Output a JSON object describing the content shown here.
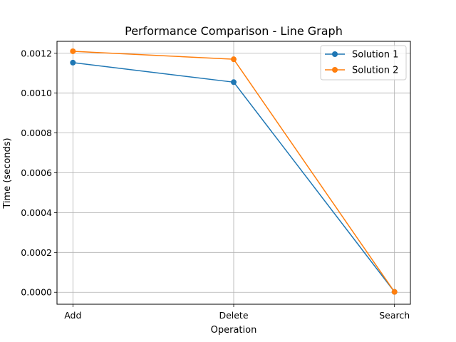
{
  "chart_data": {
    "type": "line",
    "title": "Performance Comparison - Line Graph",
    "xlabel": "Operation",
    "ylabel": "Time (seconds)",
    "categories": [
      "Add",
      "Delete",
      "Search"
    ],
    "ylim": [
      -6e-05,
      0.00126
    ],
    "yticks": [
      0.0,
      0.0002,
      0.0004,
      0.0006,
      0.0008,
      0.001,
      0.0012
    ],
    "ytick_labels": [
      "0.0000",
      "0.0002",
      "0.0004",
      "0.0006",
      "0.0008",
      "0.0010",
      "0.0012"
    ],
    "grid": true,
    "legend_position": "top-right",
    "series": [
      {
        "name": "Solution 1",
        "color": "#1f77b4",
        "marker": "circle",
        "values": [
          0.001153,
          0.001055,
          2e-06
        ]
      },
      {
        "name": "Solution 2",
        "color": "#ff7f0e",
        "marker": "circle",
        "values": [
          0.00121,
          0.00117,
          2e-06
        ]
      }
    ]
  }
}
